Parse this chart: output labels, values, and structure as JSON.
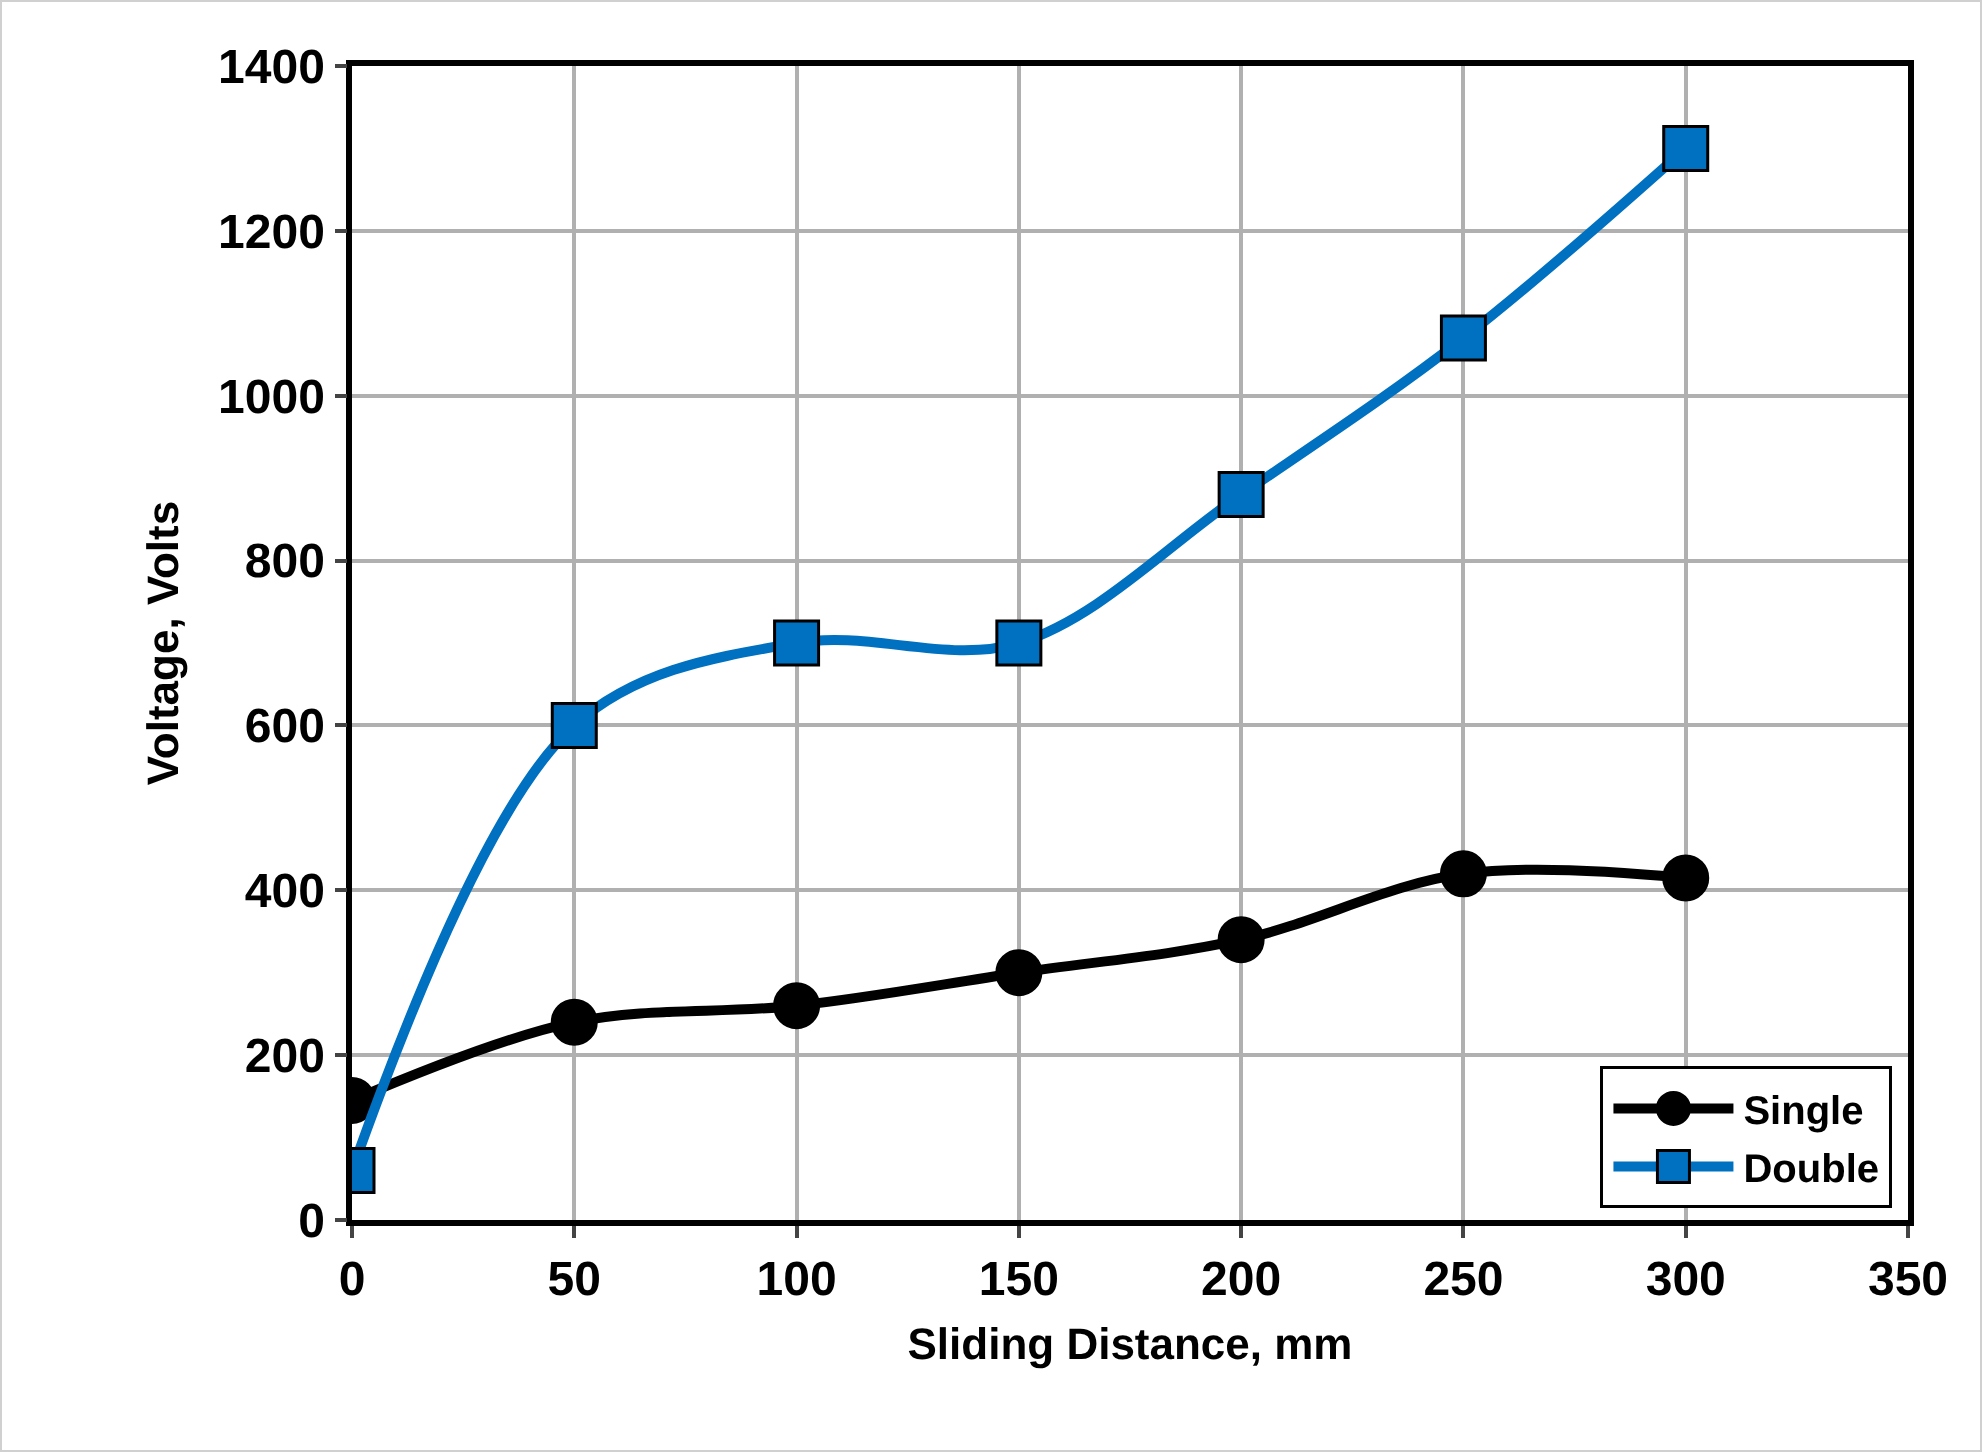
{
  "chart_data": {
    "type": "line",
    "xlabel": "Sliding Distance, mm",
    "ylabel": "Voltage, Volts",
    "x": [
      0,
      50,
      100,
      150,
      200,
      250,
      300
    ],
    "series": [
      {
        "name": "Single",
        "color": "#000000",
        "marker": "circle",
        "values": [
          145,
          240,
          260,
          300,
          340,
          420,
          415
        ]
      },
      {
        "name": "Double",
        "color": "#0070c0",
        "marker": "square",
        "values": [
          60,
          600,
          700,
          700,
          880,
          1070,
          1300
        ]
      }
    ],
    "xlim": [
      0,
      350
    ],
    "xticks": [
      0,
      50,
      100,
      150,
      200,
      250,
      300,
      350
    ],
    "ylim": [
      0,
      1400
    ],
    "yticks": [
      0,
      200,
      400,
      600,
      800,
      1000,
      1200,
      1400
    ],
    "grid": true,
    "legend": "bottom right",
    "line_style": "solid"
  }
}
